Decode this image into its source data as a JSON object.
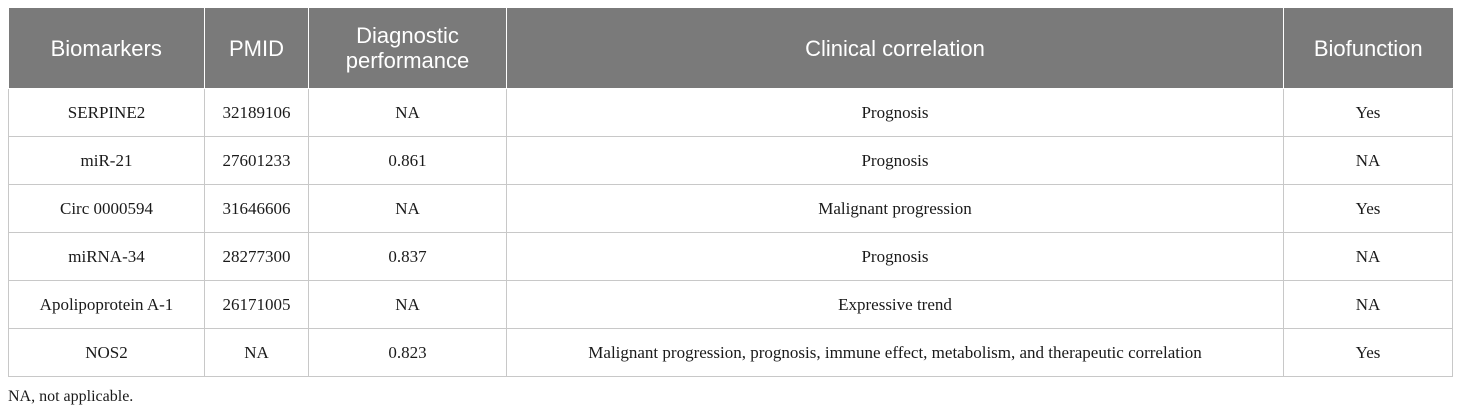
{
  "table": {
    "headers": [
      "Biomarkers",
      "PMID",
      "Diagnostic performance",
      "Clinical correlation",
      "Biofunction"
    ],
    "rows": [
      [
        "SERPINE2",
        "32189106",
        "NA",
        "Prognosis",
        "Yes"
      ],
      [
        "miR-21",
        "27601233",
        "0.861",
        "Prognosis",
        "NA"
      ],
      [
        "Circ 0000594",
        "31646606",
        "NA",
        "Malignant progression",
        "Yes"
      ],
      [
        "miRNA-34",
        "28277300",
        "0.837",
        "Prognosis",
        "NA"
      ],
      [
        "Apolipoprotein A-1",
        "26171005",
        "NA",
        "Expressive trend",
        "NA"
      ],
      [
        "NOS2",
        "NA",
        "0.823",
        "Malignant progression, prognosis, immune effect, metabolism, and therapeutic correlation",
        "Yes"
      ]
    ]
  },
  "footnote": "NA, not applicable."
}
